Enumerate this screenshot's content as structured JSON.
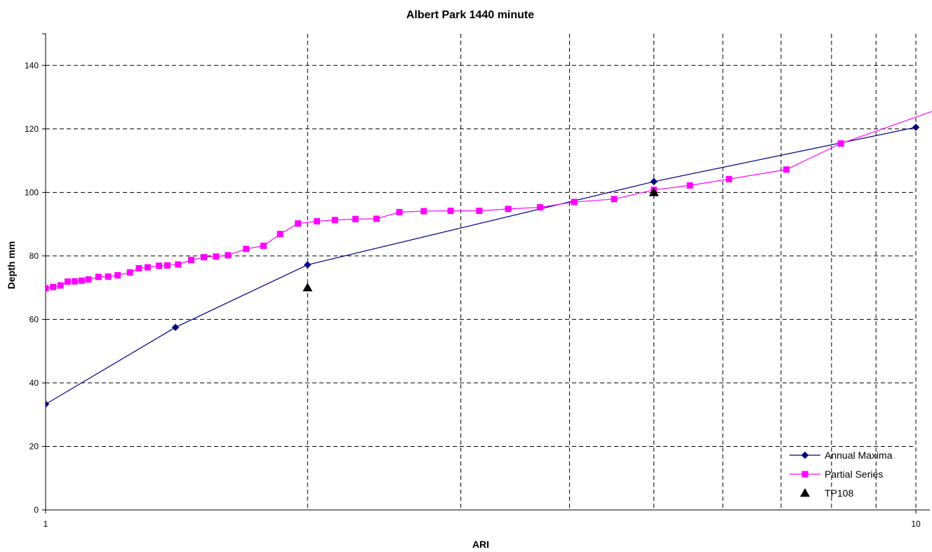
{
  "chart_data": {
    "type": "line",
    "title": "Albert Park 1440 minute",
    "xlabel": "ARI",
    "ylabel": "Depth mm",
    "x_scale": "log",
    "xlim": [
      1,
      10
    ],
    "ylim": [
      0,
      150
    ],
    "x_ticks": [
      1,
      10
    ],
    "y_ticks": [
      0,
      20,
      40,
      60,
      80,
      100,
      120,
      140
    ],
    "x_gridlines": [
      2,
      3,
      4,
      5,
      6,
      7,
      8,
      9
    ],
    "grid": true,
    "legend_position": "bottom-right",
    "series": [
      {
        "name": "Annual Maxima",
        "color": "#000080",
        "marker": "diamond",
        "x": [
          1,
          1.41,
          2,
          5,
          10
        ],
        "y": [
          33.3,
          57.5,
          77.2,
          103.4,
          120.5
        ]
      },
      {
        "name": "Partial Series",
        "color": "#FF00FF",
        "marker": "square",
        "x": [
          1,
          1.02,
          1.04,
          1.06,
          1.08,
          1.1,
          1.12,
          1.15,
          1.18,
          1.21,
          1.25,
          1.28,
          1.31,
          1.35,
          1.38,
          1.42,
          1.47,
          1.52,
          1.57,
          1.62,
          1.7,
          1.78,
          1.86,
          1.95,
          2.05,
          2.15,
          2.27,
          2.4,
          2.55,
          2.72,
          2.92,
          3.15,
          3.4,
          3.7,
          4.05,
          4.5,
          5.0,
          5.5,
          6.1,
          7.1,
          8.2,
          11.0
        ],
        "y": [
          69.8,
          70.2,
          70.7,
          71.9,
          72.0,
          72.2,
          72.6,
          73.4,
          73.5,
          73.9,
          74.8,
          76.1,
          76.4,
          76.9,
          77.0,
          77.3,
          78.7,
          79.6,
          79.8,
          80.2,
          82.2,
          83.2,
          86.9,
          90.2,
          90.9,
          91.3,
          91.6,
          91.7,
          93.8,
          94.1,
          94.2,
          94.2,
          94.8,
          95.3,
          97.0,
          97.9,
          100.8,
          102.2,
          104.2,
          107.2,
          115.4,
          127.7
        ]
      },
      {
        "name": "TP108",
        "color": "#000000",
        "marker": "triangle",
        "x": [
          2,
          5
        ],
        "y": [
          70,
          100
        ]
      }
    ]
  }
}
